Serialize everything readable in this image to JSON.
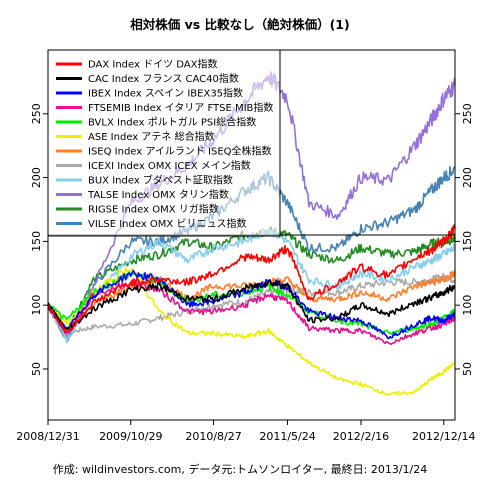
{
  "chart_data": {
    "type": "line",
    "title": "相対株価 vs 比較なし（絶対株価）(1)",
    "caption": "作成: wildinvestors.com, データ元:トムソンロイター, 最終日: 2013/1/24",
    "xlabel": "",
    "ylabel": "",
    "x_tick_labels": [
      "2008/12/31",
      "2009/10/29",
      "2010/8/27",
      "2011/5/24",
      "2012/2/16",
      "2012/12/14"
    ],
    "x_dates": [
      "2008-12-31",
      "2009-03-09",
      "2009-06-15",
      "2009-10-29",
      "2010-02-10",
      "2010-05-25",
      "2010-08-27",
      "2010-12-20",
      "2011-03-15",
      "2011-05-24",
      "2011-08-10",
      "2011-11-25",
      "2012-02-16",
      "2012-05-28",
      "2012-08-30",
      "2012-10-30",
      "2012-12-14",
      "2013-01-24"
    ],
    "ylim": [
      10,
      300
    ],
    "y_ticks": [
      50,
      100,
      150,
      200,
      250
    ],
    "y_tick_labels": [
      "50",
      "100",
      "150",
      "200",
      "250"
    ],
    "reference_line": 155,
    "grid": false,
    "legend_position": "top-left",
    "series": [
      {
        "name": "DAX Index ドイツ DAX指数",
        "color": "#ff0000",
        "values": [
          100,
          78,
          102,
          118,
          120,
          118,
          125,
          138,
          135,
          145,
          105,
          118,
          130,
          123,
          137,
          143,
          150,
          160
        ]
      },
      {
        "name": "CAC Index フランス CAC40指数",
        "color": "#000000",
        "values": [
          100,
          80,
          97,
          112,
          115,
          105,
          105,
          113,
          118,
          115,
          88,
          90,
          100,
          93,
          102,
          106,
          110,
          115
        ]
      },
      {
        "name": "IBEX Index スペイン IBEX35指数",
        "color": "#0000ff",
        "values": [
          100,
          80,
          108,
          125,
          120,
          100,
          103,
          110,
          118,
          115,
          95,
          90,
          88,
          75,
          85,
          90,
          88,
          93
        ]
      },
      {
        "name": "FTSEMIB Index イタリア FTSE MIB指数",
        "color": "#e8108c",
        "values": [
          100,
          78,
          108,
          118,
          112,
          95,
          95,
          100,
          108,
          103,
          82,
          80,
          80,
          70,
          78,
          82,
          85,
          90
        ]
      },
      {
        "name": "BVLX Index ポルトガル PSI総合指数",
        "color": "#00ee00",
        "values": [
          100,
          88,
          110,
          125,
          118,
          103,
          108,
          110,
          115,
          108,
          95,
          88,
          85,
          78,
          82,
          85,
          90,
          95
        ]
      },
      {
        "name": "ASE Index アテネ 総合指数",
        "color": "#eeee00",
        "values": [
          100,
          85,
          110,
          130,
          95,
          78,
          78,
          75,
          80,
          68,
          55,
          42,
          38,
          30,
          32,
          42,
          48,
          55
        ]
      },
      {
        "name": "ISEQ Index アイルランド ISEQ全株指数",
        "color": "#ff7f2a",
        "values": [
          100,
          80,
          100,
          115,
          120,
          105,
          115,
          115,
          118,
          120,
          105,
          105,
          110,
          105,
          115,
          118,
          120,
          125
        ]
      },
      {
        "name": "ICEXI Index OMX ICEX メイン指数",
        "color": "#aaaaaa",
        "values": [
          100,
          78,
          83,
          85,
          90,
          95,
          100,
          103,
          110,
          112,
          110,
          110,
          115,
          118,
          118,
          120,
          122,
          120
        ]
      },
      {
        "name": "BUX Index ブダペスト証取指数",
        "color": "#87ceeb",
        "values": [
          100,
          72,
          105,
          138,
          150,
          135,
          145,
          150,
          160,
          150,
          120,
          115,
          125,
          120,
          130,
          135,
          140,
          145
        ]
      },
      {
        "name": "TALSE Index OMX タリン指数",
        "color": "#9370db",
        "values": [
          100,
          75,
          115,
          180,
          195,
          210,
          230,
          260,
          280,
          262,
          180,
          170,
          200,
          198,
          225,
          245,
          262,
          273
        ]
      },
      {
        "name": "RIGSE Index OMX リガ指数",
        "color": "#228b22",
        "values": [
          100,
          80,
          120,
          135,
          140,
          150,
          145,
          155,
          158,
          155,
          140,
          135,
          145,
          140,
          142,
          148,
          150,
          152
        ]
      },
      {
        "name": "VILSE Index OMX ビリニュス指数",
        "color": "#4682b4",
        "values": [
          100,
          72,
          115,
          150,
          150,
          158,
          170,
          190,
          200,
          180,
          145,
          145,
          160,
          165,
          175,
          190,
          200,
          207
        ]
      }
    ]
  }
}
